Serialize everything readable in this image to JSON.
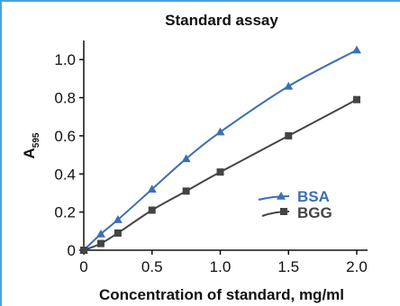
{
  "chart_data": {
    "type": "line",
    "title": "Standard assay",
    "xlabel": "Concentration of standard, mg/ml",
    "ylabel_main": "A",
    "ylabel_sub": "595",
    "xlim": [
      0,
      2.0
    ],
    "ylim": [
      0,
      1.1
    ],
    "x_ticks": [
      0,
      0.5,
      1.0,
      1.5,
      2.0
    ],
    "x_tick_labels": [
      "0",
      "0.5",
      "1.0",
      "1.5",
      "2.0"
    ],
    "y_ticks": [
      0,
      0.2,
      0.4,
      0.6,
      0.8,
      1.0
    ],
    "y_tick_labels": [
      "0",
      "0.2",
      "0.4",
      "0.6",
      "0.8",
      "1.0"
    ],
    "grid": false,
    "legend_placement": "right",
    "series": [
      {
        "name": "BSA",
        "color": "#3d6fb5",
        "marker": "triangle",
        "x": [
          0,
          0.125,
          0.25,
          0.5,
          0.75,
          1.0,
          1.5,
          2.0
        ],
        "y": [
          0.0,
          0.085,
          0.16,
          0.32,
          0.48,
          0.62,
          0.86,
          1.05
        ]
      },
      {
        "name": "BGG",
        "color": "#444444",
        "marker": "square",
        "x": [
          0,
          0.125,
          0.25,
          0.5,
          0.75,
          1.0,
          1.5,
          2.0
        ],
        "y": [
          0.0,
          0.035,
          0.09,
          0.21,
          0.31,
          0.41,
          0.6,
          0.79
        ]
      }
    ]
  }
}
